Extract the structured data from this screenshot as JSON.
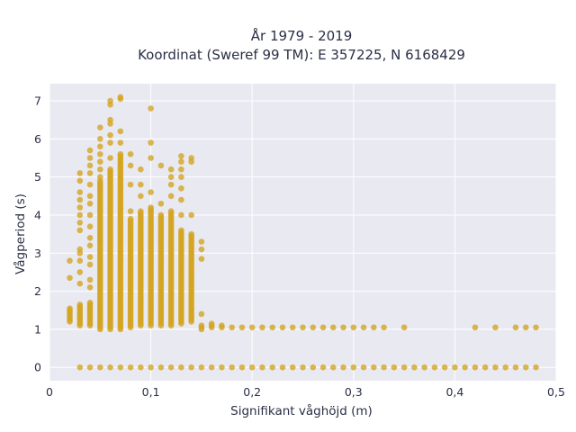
{
  "chart_data": {
    "type": "scatter",
    "title_lines": [
      "År 1979 - 2019",
      "Koordinat (Sweref 99 TM): E 357225, N 6168429"
    ],
    "xlabel": "Signifikant våghöjd (m)",
    "ylabel": "Vågperiod (s)",
    "xlim": [
      0,
      0.5
    ],
    "ylim": [
      -0.35,
      7.45
    ],
    "x_ticks": [
      {
        "value": 0,
        "label": "0"
      },
      {
        "value": 0.1,
        "label": "0,1"
      },
      {
        "value": 0.2,
        "label": "0,2"
      },
      {
        "value": 0.3,
        "label": "0,3"
      },
      {
        "value": 0.4,
        "label": "0,4"
      },
      {
        "value": 0.5,
        "label": "0,5"
      }
    ],
    "y_ticks": [
      {
        "value": 0,
        "label": "0"
      },
      {
        "value": 1,
        "label": "1"
      },
      {
        "value": 2,
        "label": "2"
      },
      {
        "value": 3,
        "label": "3"
      },
      {
        "value": 4,
        "label": "4"
      },
      {
        "value": 5,
        "label": "5"
      },
      {
        "value": 6,
        "label": "6"
      },
      {
        "value": 7,
        "label": "7"
      }
    ],
    "grid": true,
    "colors": {
      "marker": "#d4a41f",
      "plot_bg": "#e9e9f1",
      "grid": "#ffffff",
      "text": "#2a2f45"
    },
    "columns": [
      {
        "x": 0.02,
        "y_range": [
          1.2,
          1.55
        ],
        "extra_y": [
          2.35,
          2.8
        ]
      },
      {
        "x": 0.03,
        "y_range": [
          1.1,
          1.65
        ],
        "extra_y": [
          2.2,
          2.5,
          2.8,
          3.0,
          3.1,
          3.6,
          3.8,
          4.0,
          4.2,
          4.4,
          4.6,
          4.9,
          5.1
        ]
      },
      {
        "x": 0.04,
        "y_range": [
          1.1,
          1.7
        ],
        "extra_y": [
          2.1,
          2.3,
          2.7,
          2.9,
          3.2,
          3.4,
          3.7,
          4.0,
          4.3,
          4.5,
          4.8,
          5.1,
          5.3,
          5.5,
          5.7
        ]
      },
      {
        "x": 0.05,
        "y_range": [
          1.0,
          4.9
        ],
        "extra_y": [
          5.0,
          5.2,
          5.4,
          5.6,
          5.8,
          6.0,
          6.3
        ]
      },
      {
        "x": 0.06,
        "y_range": [
          1.0,
          5.2
        ],
        "extra_y": [
          5.5,
          5.9,
          6.1,
          6.4,
          6.5,
          6.9,
          7.0
        ]
      },
      {
        "x": 0.07,
        "y_range": [
          1.0,
          5.6
        ],
        "extra_y": [
          5.9,
          6.2,
          7.05,
          7.1
        ]
      },
      {
        "x": 0.08,
        "y_range": [
          1.05,
          3.9
        ],
        "extra_y": [
          4.1,
          4.8,
          5.3,
          5.6
        ]
      },
      {
        "x": 0.09,
        "y_range": [
          1.1,
          4.1
        ],
        "extra_y": [
          4.5,
          4.8,
          5.2
        ]
      },
      {
        "x": 0.1,
        "y_range": [
          1.1,
          4.2
        ],
        "extra_y": [
          4.6,
          5.5,
          5.9,
          6.8
        ]
      },
      {
        "x": 0.11,
        "y_range": [
          1.1,
          4.0
        ],
        "extra_y": [
          4.3,
          5.3
        ]
      },
      {
        "x": 0.12,
        "y_range": [
          1.1,
          4.1
        ],
        "extra_y": [
          4.5,
          4.8,
          5.0,
          5.2
        ]
      },
      {
        "x": 0.13,
        "y_range": [
          1.15,
          3.6
        ],
        "extra_y": [
          4.0,
          4.4,
          4.7,
          5.0,
          5.2,
          5.4,
          5.55
        ]
      },
      {
        "x": 0.14,
        "y_range": [
          1.2,
          3.5
        ],
        "extra_y": [
          4.0,
          5.4,
          5.5
        ]
      },
      {
        "x": 0.15,
        "y_range": [
          1.0,
          1.1
        ],
        "extra_y": [
          1.4,
          2.85,
          3.1,
          3.3
        ]
      },
      {
        "x": 0.16,
        "y_range": [
          1.05,
          1.15
        ],
        "extra_y": []
      },
      {
        "x": 0.17,
        "y_range": [
          1.05,
          1.1
        ],
        "extra_y": []
      }
    ],
    "flat_points_y1": [
      0.18,
      0.19,
      0.2,
      0.21,
      0.22,
      0.23,
      0.24,
      0.25,
      0.26,
      0.27,
      0.28,
      0.29,
      0.3,
      0.31,
      0.32,
      0.33,
      0.35,
      0.42,
      0.44,
      0.46,
      0.47,
      0.48
    ],
    "zero_row_x": [
      0.03,
      0.04,
      0.05,
      0.06,
      0.07,
      0.08,
      0.09,
      0.1,
      0.11,
      0.12,
      0.13,
      0.14,
      0.15,
      0.16,
      0.17,
      0.18,
      0.19,
      0.2,
      0.21,
      0.22,
      0.23,
      0.24,
      0.25,
      0.26,
      0.27,
      0.28,
      0.29,
      0.3,
      0.31,
      0.32,
      0.33,
      0.34,
      0.35,
      0.36,
      0.37,
      0.38,
      0.39,
      0.4,
      0.41,
      0.42,
      0.43,
      0.44,
      0.45,
      0.46,
      0.47,
      0.48
    ]
  }
}
